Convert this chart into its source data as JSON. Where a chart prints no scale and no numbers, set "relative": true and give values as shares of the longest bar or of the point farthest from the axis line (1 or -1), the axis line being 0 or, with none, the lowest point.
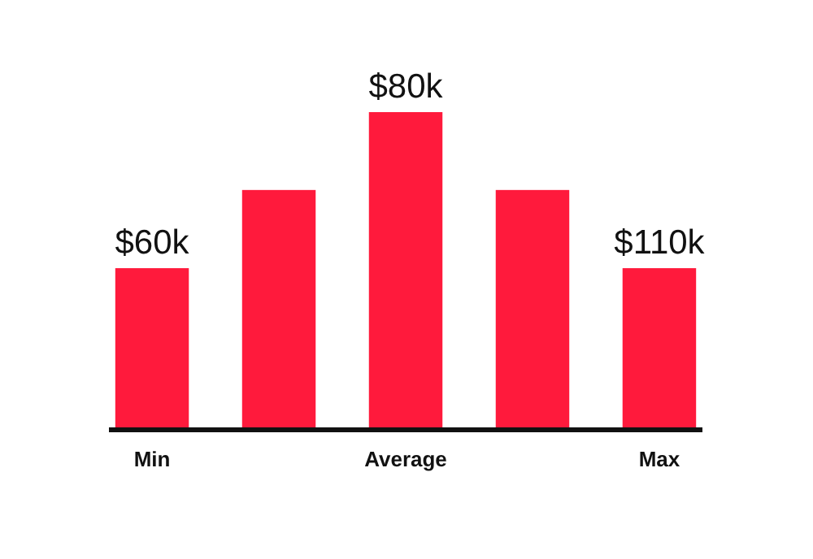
{
  "chart_data": {
    "type": "bar",
    "relative": true,
    "categories": [
      "Min",
      null,
      "Average",
      null,
      "Max"
    ],
    "values": [
      0.505,
      0.753,
      1,
      0.753,
      0.505
    ],
    "color": "#ff1a3c",
    "annotations": [
      {
        "text": "$60k",
        "x": "Min",
        "y": 0.505
      },
      {
        "text": "$80k",
        "x": "Average",
        "y": 1
      },
      {
        "text": "$110k",
        "x": "Max",
        "y": 0.505
      }
    ]
  }
}
